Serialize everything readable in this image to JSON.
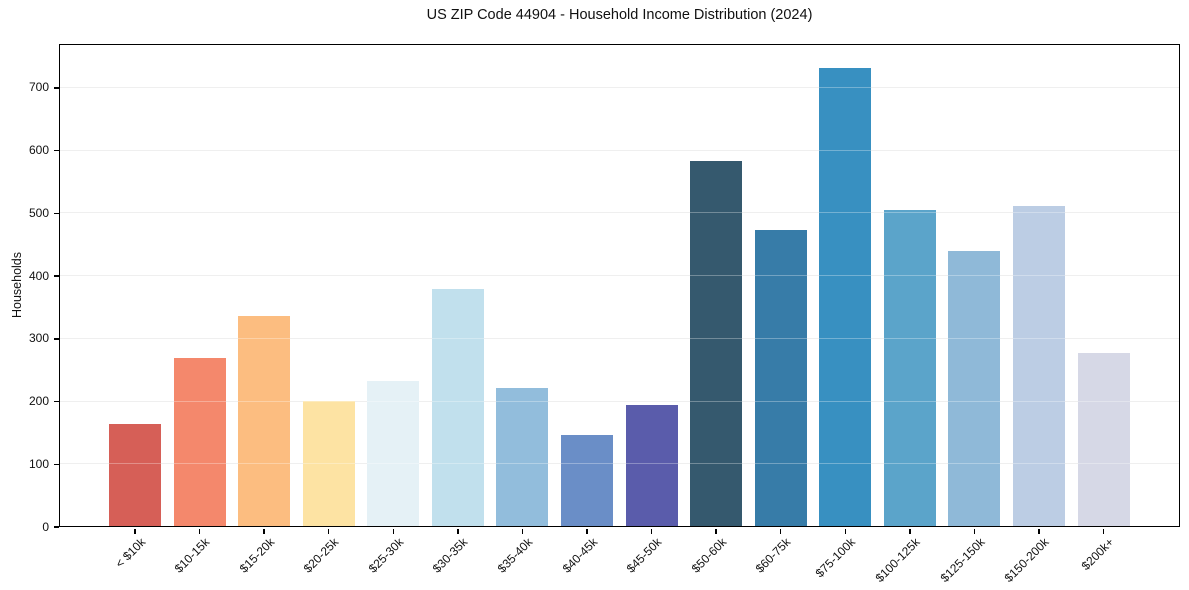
{
  "chart_data": {
    "type": "bar",
    "title": "US ZIP Code 44904 - Household Income Distribution (2024)",
    "xlabel": "",
    "ylabel": "Households",
    "categories": [
      "< $10k",
      "$10-15k",
      "$15-20k",
      "$20-25k",
      "$25-30k",
      "$30-35k",
      "$35-40k",
      "$40-45k",
      "$45-50k",
      "$50-60k",
      "$60-75k",
      "$75-100k",
      "$100-125k",
      "$125-150k",
      "$150-200k",
      "$200k+"
    ],
    "values": [
      165,
      270,
      337,
      201,
      232,
      380,
      222,
      147,
      195,
      584,
      474,
      732,
      505,
      440,
      511,
      278
    ],
    "bar_colors": [
      "#d65f57",
      "#f4886c",
      "#fcbd80",
      "#fde3a3",
      "#e5f1f6",
      "#c1e0ed",
      "#92bddc",
      "#6a8ec7",
      "#5a5cab",
      "#35596e",
      "#377ca8",
      "#3890c1",
      "#5ba4ca",
      "#8fb9d8",
      "#bccde4",
      "#d6d8e6"
    ],
    "yticks": [
      0,
      100,
      200,
      300,
      400,
      500,
      600,
      700
    ],
    "ylim": [
      0,
      770
    ],
    "grid": "horizontal",
    "legend": "none",
    "background_color": "#ffffff",
    "gridline_color": "#e9e9e9",
    "spine_color": "#000000",
    "text_color": "#111111"
  }
}
